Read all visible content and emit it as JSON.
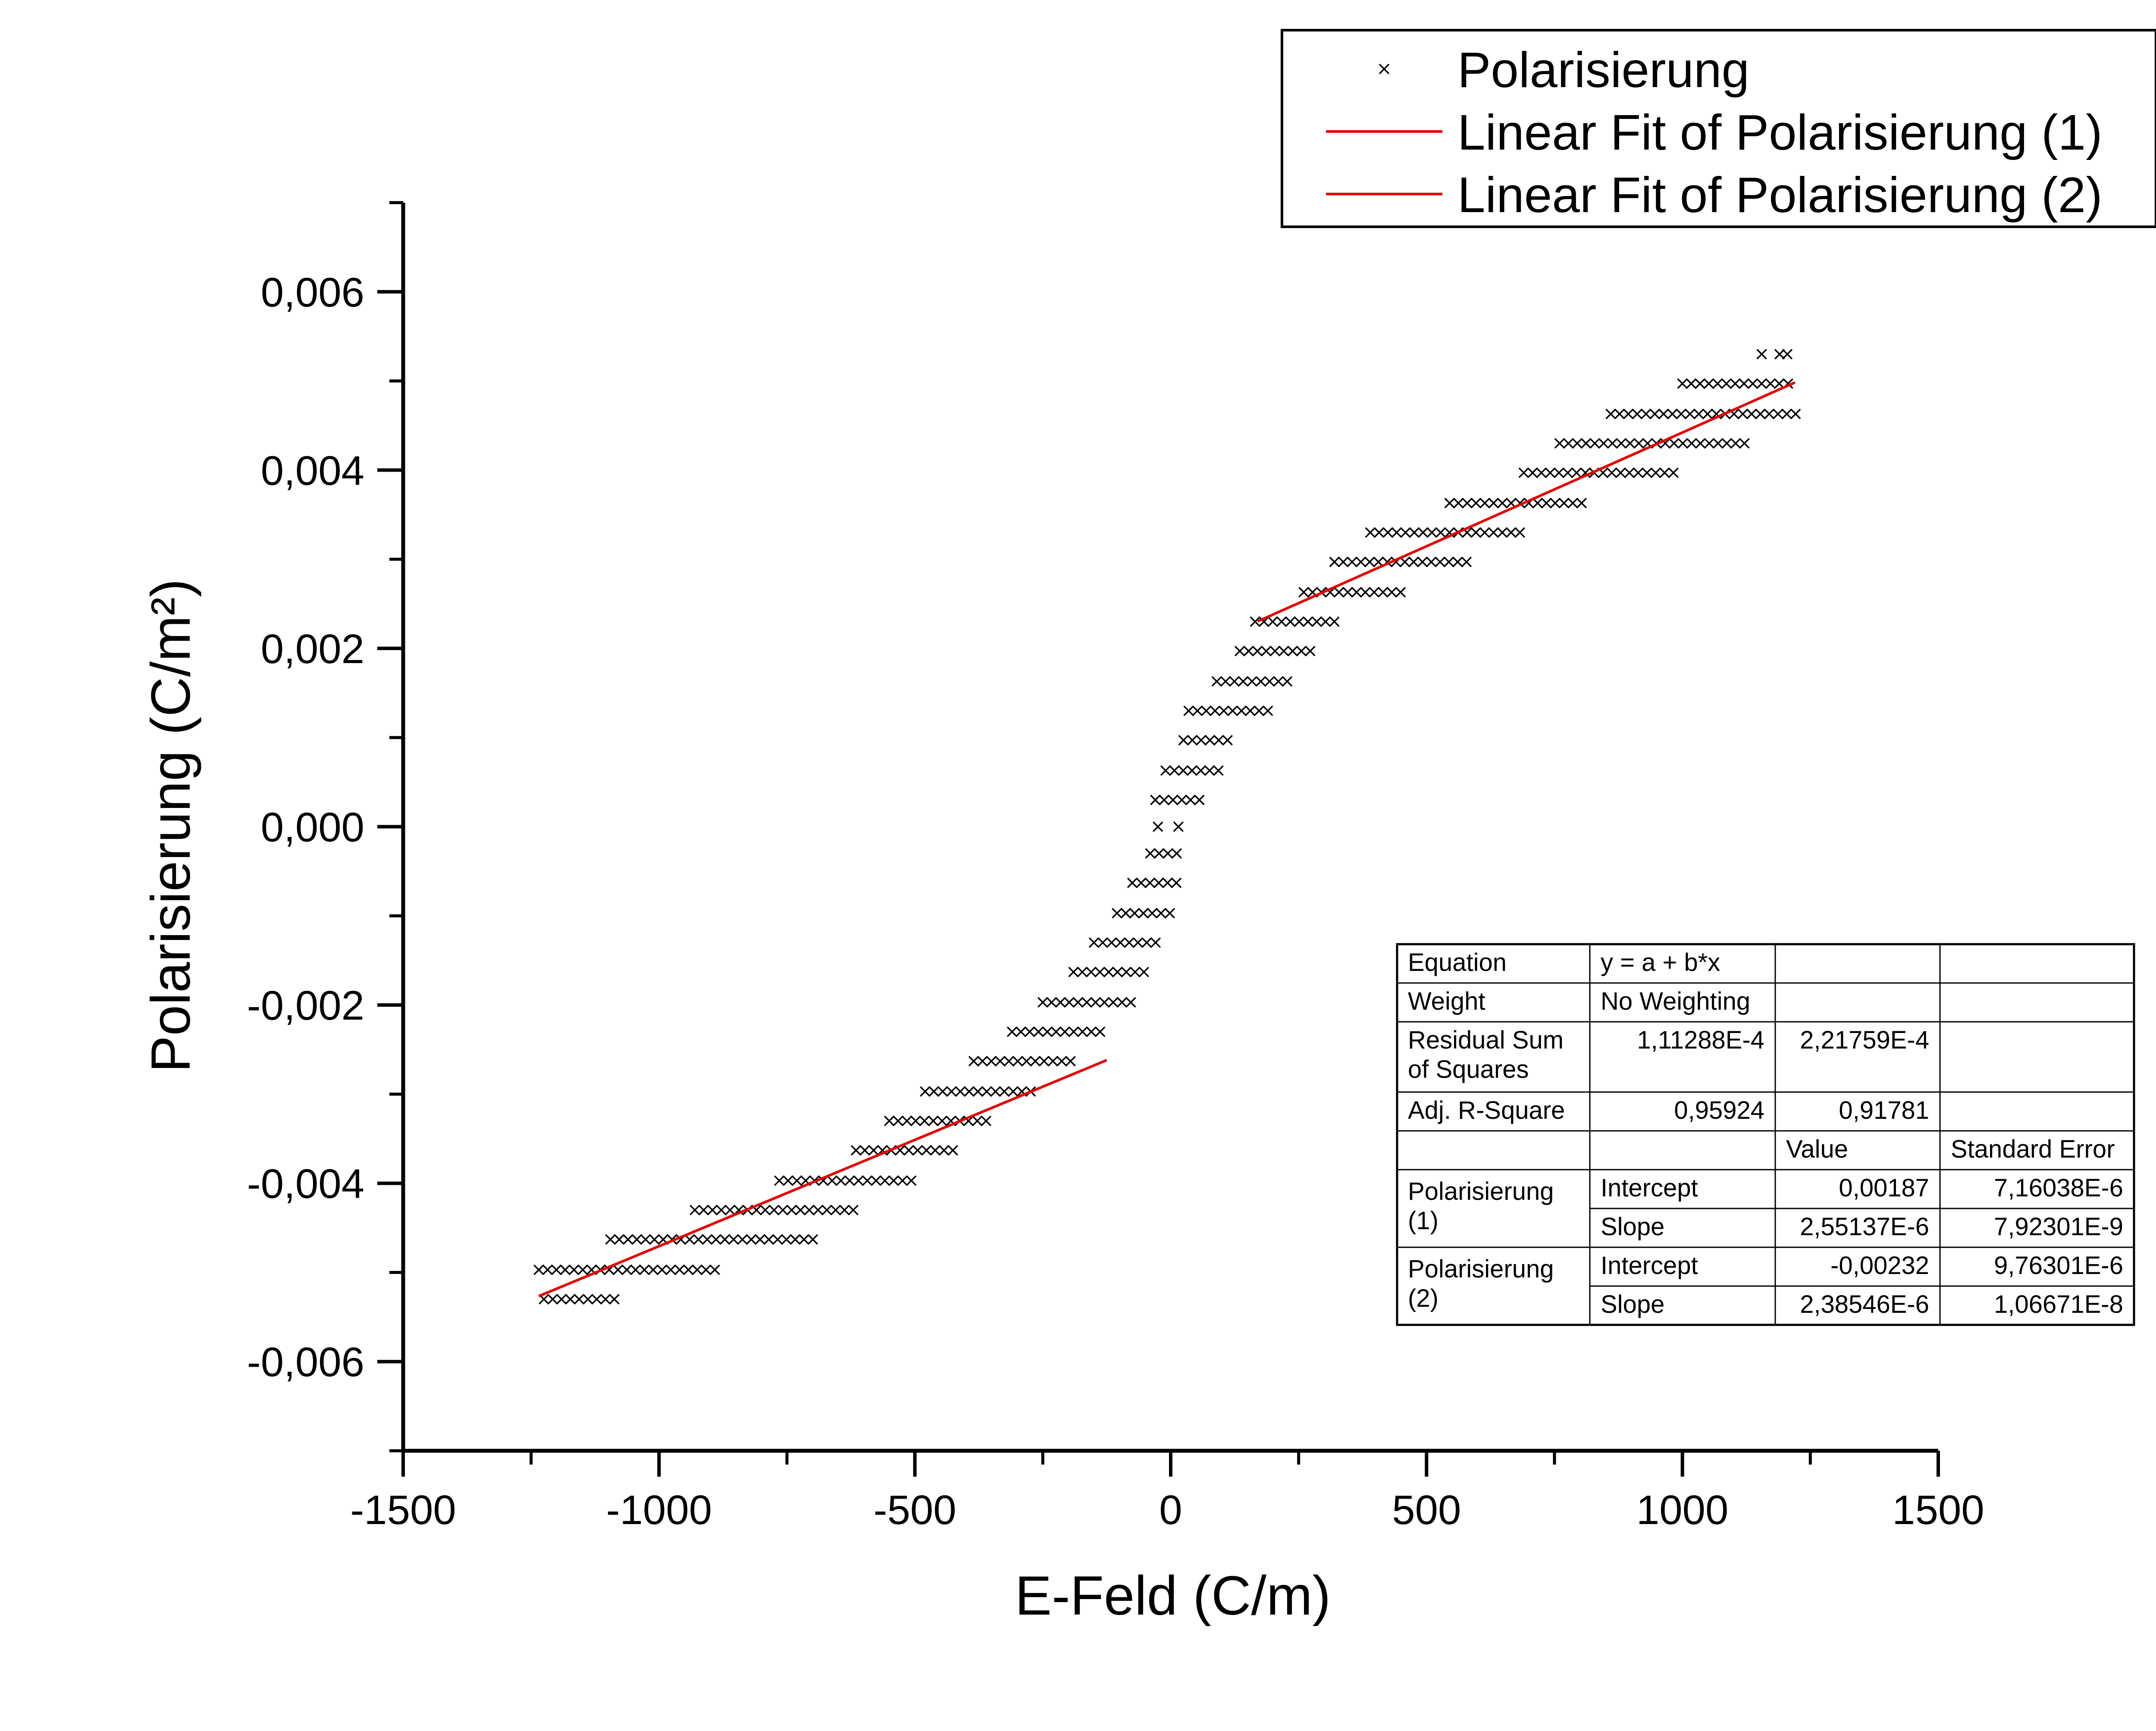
{
  "chart_data": {
    "type": "scatter",
    "xlabel": "E-Feld (C/m)",
    "ylabel": "Polarisierung (C/m²)",
    "xlim": [
      -1500,
      1500
    ],
    "ylim": [
      -0.007,
      0.007
    ],
    "x_ticks": [
      "-1500",
      "-1000",
      "-500",
      "0",
      "500",
      "1000",
      "1500"
    ],
    "x_tick_values": [
      -1500,
      -1000,
      -500,
      0,
      500,
      1000,
      1500
    ],
    "y_ticks": [
      "-0,006",
      "-0,004",
      "-0,002",
      "0,000",
      "0,002",
      "0,004",
      "0,006"
    ],
    "y_tick_values": [
      -0.006,
      -0.004,
      -0.002,
      0.0,
      0.002,
      0.004,
      0.006
    ],
    "grid": false,
    "legend_position": "top-right",
    "colors": {
      "points": "#000000",
      "fit": "#e00000",
      "frame": "#000000"
    },
    "series": [
      {
        "name": "Polarisierung",
        "kind": "scatter",
        "marker": "×",
        "rows": [
          {
            "y": 0.0053,
            "x": [
              1155,
              1190,
              1205
            ]
          },
          {
            "y": 0.00497,
            "x_range": [
              1000,
              1215
            ]
          },
          {
            "y": 0.00463,
            "x_range": [
              860,
              1225
            ]
          },
          {
            "y": 0.0043,
            "x_range": [
              760,
              1125
            ]
          },
          {
            "y": 0.00397,
            "x_range": [
              690,
              985
            ]
          },
          {
            "y": 0.00363,
            "x_range": [
              545,
              820
            ]
          },
          {
            "y": 0.0033,
            "x_range": [
              390,
              690
            ]
          },
          {
            "y": 0.00297,
            "x_range": [
              320,
              580
            ]
          },
          {
            "y": 0.00263,
            "x_range": [
              260,
              450
            ]
          },
          {
            "y": 0.0023,
            "x_range": [
              165,
              330
            ]
          },
          {
            "y": 0.00197,
            "x_range": [
              135,
              285
            ]
          },
          {
            "y": 0.00163,
            "x_range": [
              90,
              240
            ]
          },
          {
            "y": 0.0013,
            "x_range": [
              35,
              190
            ]
          },
          {
            "y": 0.00097,
            "x_range": [
              25,
              125
            ]
          },
          {
            "y": 0.00063,
            "x_range": [
              -10,
              100
            ]
          },
          {
            "y": 0.0003,
            "x_range": [
              -30,
              65
            ]
          },
          {
            "y": 0.0,
            "x": [
              -25,
              15
            ]
          },
          {
            "y": -0.0003,
            "x_range": [
              -40,
              20
            ]
          },
          {
            "y": -0.00063,
            "x_range": [
              -75,
              15
            ]
          },
          {
            "y": -0.00097,
            "x_range": [
              -105,
              15
            ]
          },
          {
            "y": -0.0013,
            "x_range": [
              -150,
              -20
            ]
          },
          {
            "y": -0.00163,
            "x_range": [
              -190,
              -45
            ]
          },
          {
            "y": -0.00197,
            "x_range": [
              -250,
              -75
            ]
          },
          {
            "y": -0.0023,
            "x_range": [
              -310,
              -130
            ]
          },
          {
            "y": -0.00263,
            "x_range": [
              -385,
              -185
            ]
          },
          {
            "y": -0.00297,
            "x_range": [
              -480,
              -270
            ]
          },
          {
            "y": -0.0033,
            "x_range": [
              -550,
              -345
            ]
          },
          {
            "y": -0.00363,
            "x_range": [
              -615,
              -415
            ]
          },
          {
            "y": -0.00397,
            "x_range": [
              -765,
              -490
            ]
          },
          {
            "y": -0.0043,
            "x_range": [
              -930,
              -610
            ]
          },
          {
            "y": -0.00463,
            "x_range": [
              -1095,
              -690
            ]
          },
          {
            "y": -0.00497,
            "x_range": [
              -1235,
              -890
            ]
          },
          {
            "y": -0.0053,
            "x_range": [
              -1225,
              -1085
            ]
          }
        ]
      },
      {
        "name": "Linear Fit of Polarisierung (1)",
        "kind": "line",
        "intercept": 0.00187,
        "slope": 2.55137e-06,
        "x_range": [
          170,
          1220
        ]
      },
      {
        "name": "Linear Fit of Polarisierung (2)",
        "kind": "line",
        "intercept": -0.00232,
        "slope": 2.38546e-06,
        "x_range": [
          -1235,
          -125
        ]
      }
    ],
    "fit_table": {
      "rows": [
        [
          "Equation",
          "y = a + b*x",
          "",
          ""
        ],
        [
          "Weight",
          "No Weighting",
          "",
          ""
        ],
        [
          "Residual Sum\nof Squares",
          "1,11288E-4",
          "2,21759E-4",
          ""
        ],
        [
          "Adj. R-Square",
          "0,95924",
          "0,91781",
          ""
        ],
        [
          "",
          "",
          "Value",
          "Standard Error"
        ],
        [
          "Polarisierung\n(1)",
          "Intercept",
          "0,00187",
          "7,16038E-6"
        ],
        [
          "",
          "Slope",
          "2,55137E-6",
          "7,92301E-9"
        ],
        [
          "Polarisierung\n(2)",
          "Intercept",
          "-0,00232",
          "9,76301E-6"
        ],
        [
          "",
          "Slope",
          "2,38546E-6",
          "1,06671E-8"
        ]
      ]
    }
  }
}
